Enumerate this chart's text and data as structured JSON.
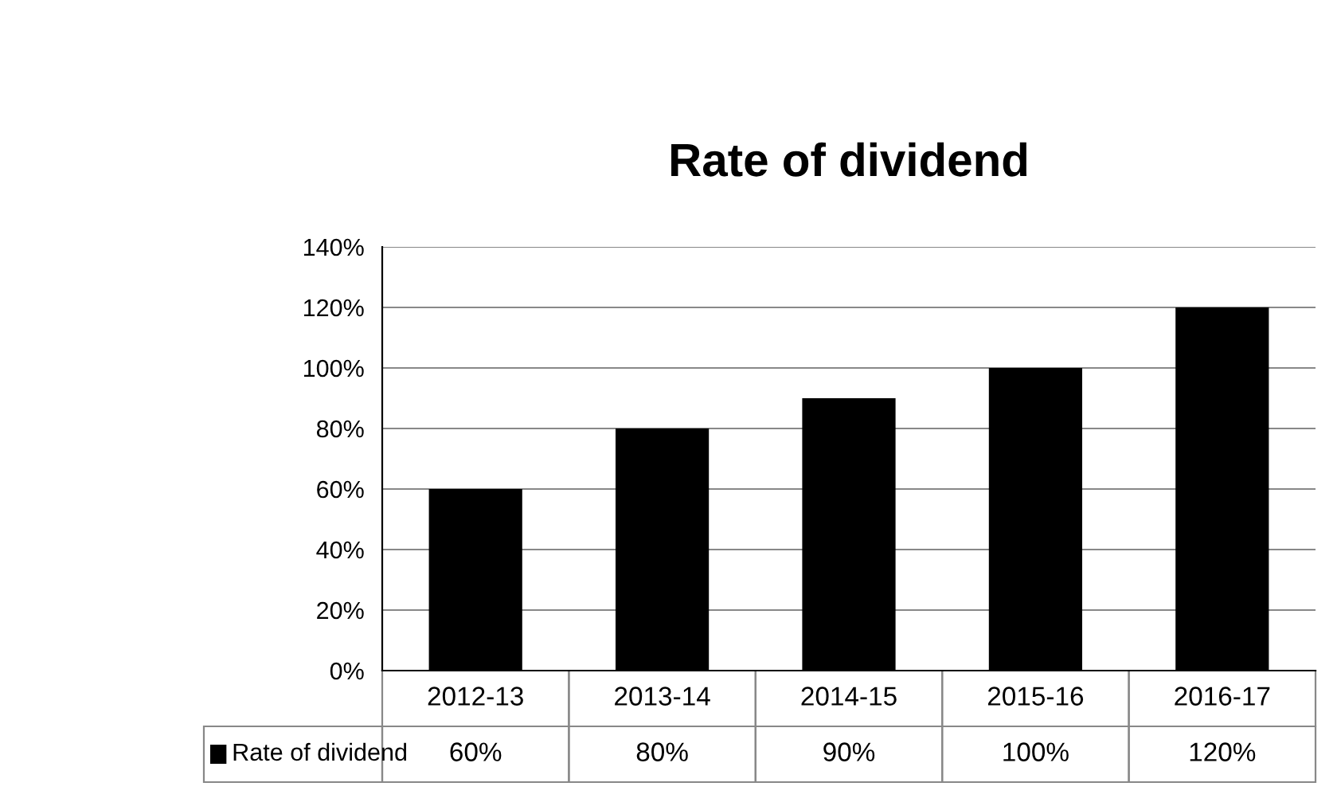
{
  "chart_data": {
    "type": "bar",
    "title": "Rate of dividend",
    "categories": [
      "2012-13",
      "2013-14",
      "2014-15",
      "2015-16",
      "2016-17"
    ],
    "series": [
      {
        "name": "Rate of dividend",
        "color": "#000000",
        "values": [
          60,
          80,
          90,
          100,
          120
        ],
        "value_labels": [
          "60%",
          "80%",
          "90%",
          "100%",
          "120%"
        ]
      }
    ],
    "ylim": [
      0,
      140
    ],
    "yticks": [
      {
        "value": 0,
        "label": "0%"
      },
      {
        "value": 20,
        "label": "20%"
      },
      {
        "value": 40,
        "label": "40%"
      },
      {
        "value": 60,
        "label": "60%"
      },
      {
        "value": 80,
        "label": "80%"
      },
      {
        "value": 100,
        "label": "100%"
      },
      {
        "value": 120,
        "label": "120%"
      },
      {
        "value": 140,
        "label": "140%"
      }
    ],
    "grid": "y",
    "legend": "bottom"
  }
}
